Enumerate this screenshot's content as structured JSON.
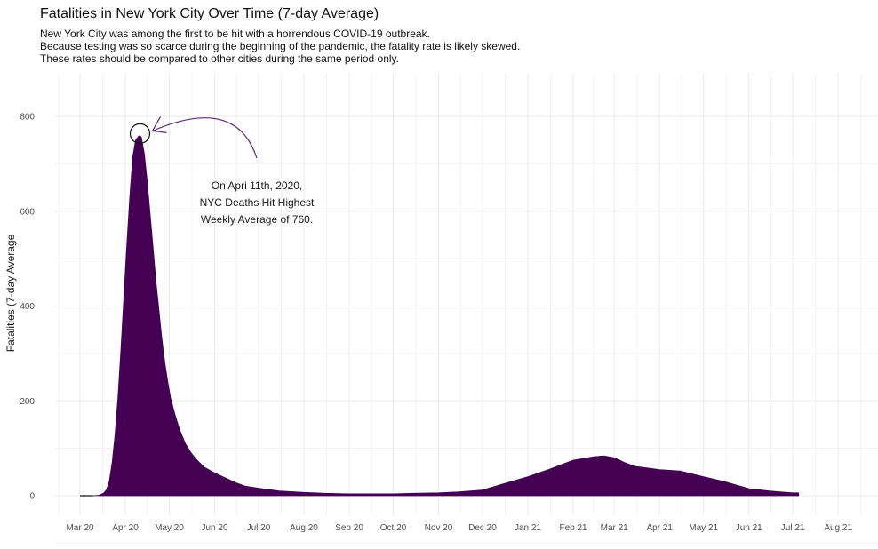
{
  "chart_data": {
    "type": "area",
    "title": "Fatalities in New York City Over Time (7-day Average)",
    "subtitle": [
      "New York City was among the first to be hit with a horrendous COVID-19 outbreak.",
      "Because testing was so scarce during the beginning of the pandemic, the fatality rate is likely skewed.",
      "These rates should be compared to other cities during the same period only."
    ],
    "xlabel": "",
    "ylabel": "Fatalities (7-day Average",
    "ylim": [
      0,
      850
    ],
    "yticks": [
      0,
      200,
      400,
      600,
      800
    ],
    "x_tick_labels": [
      "Mar 20",
      "Apr 20",
      "May 20",
      "Jun 20",
      "Jul 20",
      "Aug 20",
      "Sep 20",
      "Oct 20",
      "Nov 20",
      "Dec 20",
      "Jan 21",
      "Feb 21",
      "Mar 21",
      "Apr 21",
      "May 21",
      "Jun 21",
      "Jul 21",
      "Aug 21"
    ],
    "grid": true,
    "fill_color": "#440154",
    "annotation": {
      "text": [
        "On Apri 11th, 2020,",
        "NYC Deaths Hit Highest",
        "Weekly Average of 760."
      ],
      "target": {
        "x": "2020-04-11",
        "y": 760
      }
    },
    "series": [
      {
        "x": [
          "2020-03-01",
          "2020-03-10",
          "2020-03-14",
          "2020-03-17",
          "2020-03-19",
          "2020-03-21",
          "2020-03-23",
          "2020-03-25",
          "2020-03-27",
          "2020-03-29",
          "2020-03-31",
          "2020-04-02",
          "2020-04-04",
          "2020-04-06",
          "2020-04-08",
          "2020-04-10",
          "2020-04-11",
          "2020-04-12",
          "2020-04-14",
          "2020-04-16",
          "2020-04-18",
          "2020-04-20",
          "2020-04-22",
          "2020-04-24",
          "2020-04-26",
          "2020-04-28",
          "2020-04-30",
          "2020-05-02",
          "2020-05-05",
          "2020-05-08",
          "2020-05-12",
          "2020-05-16",
          "2020-05-20",
          "2020-05-25",
          "2020-06-01",
          "2020-06-08",
          "2020-06-15",
          "2020-06-22",
          "2020-07-01",
          "2020-07-15",
          "2020-08-01",
          "2020-08-15",
          "2020-09-01",
          "2020-10-01",
          "2020-10-15",
          "2020-11-01",
          "2020-11-15",
          "2020-12-01",
          "2020-12-15",
          "2021-01-01",
          "2021-01-15",
          "2021-02-01",
          "2021-02-15",
          "2021-02-22",
          "2021-03-01",
          "2021-03-08",
          "2021-03-15",
          "2021-04-01",
          "2021-04-15",
          "2021-05-01",
          "2021-05-15",
          "2021-06-01",
          "2021-06-15",
          "2021-07-01",
          "2021-07-05"
        ],
        "y": [
          0,
          0,
          1,
          5,
          12,
          30,
          70,
          130,
          210,
          310,
          420,
          530,
          630,
          715,
          750,
          758,
          760,
          755,
          720,
          660,
          590,
          520,
          450,
          390,
          330,
          280,
          240,
          205,
          170,
          140,
          110,
          90,
          75,
          60,
          48,
          38,
          28,
          20,
          16,
          10,
          7,
          5,
          4,
          4,
          5,
          6,
          8,
          12,
          25,
          40,
          55,
          75,
          82,
          84,
          80,
          70,
          62,
          55,
          52,
          40,
          30,
          15,
          10,
          6,
          6
        ]
      }
    ]
  }
}
